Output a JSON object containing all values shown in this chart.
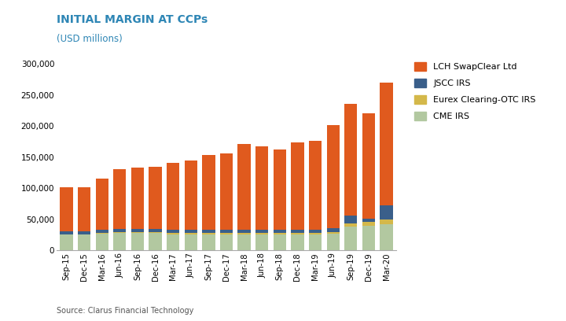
{
  "categories": [
    "Sep-15",
    "Dec-15",
    "Mar-16",
    "Jun-16",
    "Sep-16",
    "Dec-16",
    "Mar-17",
    "Jun-17",
    "Sep-17",
    "Dec-17",
    "Mar-18",
    "Jun-18",
    "Sep-18",
    "Dec-18",
    "Mar-19",
    "Jun-19",
    "Sep-19",
    "Dec-19",
    "Mar-20"
  ],
  "CME_IRS": [
    25000,
    25000,
    27000,
    28000,
    28000,
    28000,
    26000,
    26000,
    26000,
    26000,
    26000,
    26000,
    26000,
    26000,
    26000,
    27000,
    38000,
    40000,
    42000
  ],
  "Eurex_OTC_IRS": [
    1000,
    1000,
    1000,
    2000,
    2000,
    2000,
    2000,
    2000,
    2000,
    2000,
    2000,
    2000,
    2000,
    2500,
    2500,
    3000,
    5000,
    6000,
    8000
  ],
  "JSCC_IRS": [
    5000,
    5000,
    5000,
    5000,
    5000,
    5000,
    5000,
    5000,
    5000,
    5000,
    5000,
    5000,
    5000,
    5000,
    5000,
    6000,
    13000,
    5000,
    22000
  ],
  "LCH_SwapClear": [
    70000,
    70000,
    82000,
    96000,
    98000,
    100000,
    108000,
    112000,
    120000,
    123000,
    138000,
    135000,
    130000,
    140000,
    143000,
    166000,
    180000,
    170000,
    198000
  ],
  "colors": {
    "CME_IRS": "#b2c8a0",
    "Eurex_OTC_IRS": "#d4b84a",
    "JSCC_IRS": "#3a5f8a",
    "LCH_SwapClear": "#e05a1e"
  },
  "title": "INITIAL MARGIN AT CCPs",
  "subtitle": "(USD millions)",
  "title_color": "#2e86b5",
  "subtitle_color": "#2e86b5",
  "ylim": [
    0,
    310000
  ],
  "yticks": [
    0,
    50000,
    100000,
    150000,
    200000,
    250000,
    300000
  ],
  "ytick_labels": [
    "0",
    "50,000",
    "100,000",
    "150,000",
    "200,000",
    "250,000",
    "300,000"
  ],
  "source_text": "Source: Clarus Financial Technology",
  "legend_labels": [
    "LCH SwapClear Ltd",
    "JSCC IRS",
    "Eurex Clearing-OTC IRS",
    "CME IRS"
  ],
  "legend_colors": [
    "#e05a1e",
    "#3a5f8a",
    "#d4b84a",
    "#b2c8a0"
  ],
  "background_color": "#ffffff"
}
